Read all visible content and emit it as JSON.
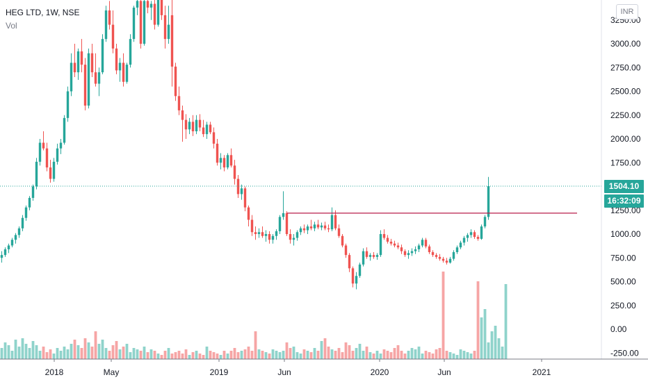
{
  "legend": {
    "symbol": "HEG LTD, 1W, NSE",
    "volume_label": "Vol"
  },
  "currency": "INR",
  "price_badge": "1504.10",
  "timer_badge": "16:32:09",
  "colors": {
    "up": "#26a69a",
    "down": "#ef5350",
    "vol_up": "#8fd3cb",
    "vol_down": "#f6a5a5",
    "price_line": "#26a69a",
    "resistance": "#b71c4a"
  },
  "chart_data": {
    "type": "candlestick",
    "title": "",
    "y_ticks": [
      "3250.00",
      "3000.00",
      "2750.00",
      "2500.00",
      "2250.00",
      "2000.00",
      "1750.00",
      "1250.00",
      "1000.00",
      "750.00",
      "500.00",
      "250.00",
      "0.00",
      "-250.00"
    ],
    "x_ticks": [
      "2018",
      "May",
      "2019",
      "Jun",
      "2020",
      "Jun",
      "2021"
    ],
    "ylim": [
      -300,
      3300
    ],
    "last_price": 1504.1,
    "resistance_level": 1220,
    "price_candles": [
      {
        "o": 750,
        "h": 820,
        "l": 700,
        "c": 780
      },
      {
        "o": 780,
        "h": 860,
        "l": 760,
        "c": 840
      },
      {
        "o": 840,
        "h": 900,
        "l": 800,
        "c": 880
      },
      {
        "o": 880,
        "h": 960,
        "l": 860,
        "c": 940
      },
      {
        "o": 940,
        "h": 1010,
        "l": 900,
        "c": 990
      },
      {
        "o": 990,
        "h": 1080,
        "l": 960,
        "c": 1060
      },
      {
        "o": 1060,
        "h": 1200,
        "l": 1030,
        "c": 1170
      },
      {
        "o": 1170,
        "h": 1300,
        "l": 1140,
        "c": 1280
      },
      {
        "o": 1280,
        "h": 1400,
        "l": 1250,
        "c": 1380
      },
      {
        "o": 1380,
        "h": 1520,
        "l": 1350,
        "c": 1500
      },
      {
        "o": 1500,
        "h": 1800,
        "l": 1470,
        "c": 1760
      },
      {
        "o": 1760,
        "h": 2000,
        "l": 1720,
        "c": 1960
      },
      {
        "o": 1960,
        "h": 2080,
        "l": 1880,
        "c": 1900
      },
      {
        "o": 1900,
        "h": 1960,
        "l": 1660,
        "c": 1700
      },
      {
        "o": 1700,
        "h": 1780,
        "l": 1540,
        "c": 1580
      },
      {
        "o": 1580,
        "h": 1800,
        "l": 1550,
        "c": 1760
      },
      {
        "o": 1760,
        "h": 1950,
        "l": 1730,
        "c": 1900
      },
      {
        "o": 1900,
        "h": 2000,
        "l": 1840,
        "c": 1960
      },
      {
        "o": 1960,
        "h": 2250,
        "l": 1940,
        "c": 2220
      },
      {
        "o": 2220,
        "h": 2550,
        "l": 2180,
        "c": 2500
      },
      {
        "o": 2500,
        "h": 2900,
        "l": 2450,
        "c": 2800
      },
      {
        "o": 2800,
        "h": 3000,
        "l": 2650,
        "c": 2700
      },
      {
        "o": 2700,
        "h": 2950,
        "l": 2620,
        "c": 2920
      },
      {
        "o": 2920,
        "h": 3050,
        "l": 2700,
        "c": 2780
      },
      {
        "o": 2780,
        "h": 2850,
        "l": 2300,
        "c": 2350
      },
      {
        "o": 2350,
        "h": 2950,
        "l": 2320,
        "c": 2900
      },
      {
        "o": 2900,
        "h": 3000,
        "l": 2650,
        "c": 2700
      },
      {
        "o": 2700,
        "h": 2900,
        "l": 2550,
        "c": 2580
      },
      {
        "o": 2580,
        "h": 2750,
        "l": 2450,
        "c": 2700
      },
      {
        "o": 2700,
        "h": 3100,
        "l": 2680,
        "c": 3050
      },
      {
        "o": 3050,
        "h": 3400,
        "l": 3020,
        "c": 3350
      },
      {
        "o": 3350,
        "h": 3450,
        "l": 3150,
        "c": 3200
      },
      {
        "o": 3200,
        "h": 3350,
        "l": 2900,
        "c": 2950
      },
      {
        "o": 2950,
        "h": 3000,
        "l": 2680,
        "c": 2720
      },
      {
        "o": 2720,
        "h": 2850,
        "l": 2600,
        "c": 2800
      },
      {
        "o": 2800,
        "h": 2900,
        "l": 2550,
        "c": 2600
      },
      {
        "o": 2600,
        "h": 2800,
        "l": 2580,
        "c": 2780
      },
      {
        "o": 2780,
        "h": 3100,
        "l": 2750,
        "c": 3050
      },
      {
        "o": 3050,
        "h": 3400,
        "l": 3020,
        "c": 3380
      },
      {
        "o": 3380,
        "h": 3500,
        "l": 3300,
        "c": 3450
      },
      {
        "o": 3450,
        "h": 3500,
        "l": 2950,
        "c": 3000
      },
      {
        "o": 3000,
        "h": 3500,
        "l": 2980,
        "c": 3450
      },
      {
        "o": 3450,
        "h": 3480,
        "l": 3320,
        "c": 3380
      },
      {
        "o": 3380,
        "h": 3450,
        "l": 3250,
        "c": 3420
      },
      {
        "o": 3420,
        "h": 3480,
        "l": 3150,
        "c": 3200
      },
      {
        "o": 3200,
        "h": 3500,
        "l": 3180,
        "c": 3480
      },
      {
        "o": 3600,
        "h": 3700,
        "l": 3250,
        "c": 3300
      },
      {
        "o": 3300,
        "h": 3400,
        "l": 2950,
        "c": 3050
      },
      {
        "o": 3050,
        "h": 3400,
        "l": 3000,
        "c": 3200
      },
      {
        "o": 3300,
        "h": 3500,
        "l": 2550,
        "c": 2760
      },
      {
        "o": 2760,
        "h": 2800,
        "l": 2400,
        "c": 2450
      },
      {
        "o": 2450,
        "h": 2550,
        "l": 2250,
        "c": 2300
      },
      {
        "o": 2300,
        "h": 2350,
        "l": 1970,
        "c": 2200
      },
      {
        "o": 2200,
        "h": 2260,
        "l": 2000,
        "c": 2100
      },
      {
        "o": 2100,
        "h": 2220,
        "l": 2050,
        "c": 2180
      },
      {
        "o": 2180,
        "h": 2250,
        "l": 2030,
        "c": 2080
      },
      {
        "o": 2080,
        "h": 2250,
        "l": 2050,
        "c": 2200
      },
      {
        "o": 2200,
        "h": 2260,
        "l": 2080,
        "c": 2120
      },
      {
        "o": 2120,
        "h": 2200,
        "l": 2020,
        "c": 2050
      },
      {
        "o": 2050,
        "h": 2180,
        "l": 2000,
        "c": 2150
      },
      {
        "o": 2150,
        "h": 2180,
        "l": 2050,
        "c": 2070
      },
      {
        "o": 2070,
        "h": 2120,
        "l": 1900,
        "c": 1950
      },
      {
        "o": 1950,
        "h": 2000,
        "l": 1720,
        "c": 1750
      },
      {
        "o": 1750,
        "h": 1850,
        "l": 1680,
        "c": 1800
      },
      {
        "o": 1800,
        "h": 1830,
        "l": 1660,
        "c": 1700
      },
      {
        "o": 1700,
        "h": 1850,
        "l": 1680,
        "c": 1830
      },
      {
        "o": 1830,
        "h": 1900,
        "l": 1700,
        "c": 1720
      },
      {
        "o": 1720,
        "h": 1780,
        "l": 1520,
        "c": 1580
      },
      {
        "o": 1580,
        "h": 1620,
        "l": 1380,
        "c": 1420
      },
      {
        "o": 1420,
        "h": 1520,
        "l": 1360,
        "c": 1480
      },
      {
        "o": 1480,
        "h": 1500,
        "l": 1240,
        "c": 1280
      },
      {
        "o": 1280,
        "h": 1300,
        "l": 1080,
        "c": 1150
      },
      {
        "o": 1150,
        "h": 1200,
        "l": 980,
        "c": 1020
      },
      {
        "o": 1020,
        "h": 1080,
        "l": 940,
        "c": 1000
      },
      {
        "o": 1000,
        "h": 1060,
        "l": 960,
        "c": 1020
      },
      {
        "o": 1020,
        "h": 1080,
        "l": 960,
        "c": 980
      },
      {
        "o": 980,
        "h": 1040,
        "l": 920,
        "c": 1000
      },
      {
        "o": 1000,
        "h": 1030,
        "l": 900,
        "c": 940
      },
      {
        "o": 940,
        "h": 1000,
        "l": 900,
        "c": 980
      },
      {
        "o": 980,
        "h": 1050,
        "l": 940,
        "c": 1030
      },
      {
        "o": 1030,
        "h": 1200,
        "l": 1000,
        "c": 1180
      },
      {
        "o": 1180,
        "h": 1450,
        "l": 1150,
        "c": 1220
      },
      {
        "o": 1220,
        "h": 1240,
        "l": 980,
        "c": 1000
      },
      {
        "o": 1000,
        "h": 1050,
        "l": 900,
        "c": 940
      },
      {
        "o": 940,
        "h": 1000,
        "l": 880,
        "c": 960
      },
      {
        "o": 960,
        "h": 1040,
        "l": 930,
        "c": 1020
      },
      {
        "o": 1020,
        "h": 1080,
        "l": 990,
        "c": 1060
      },
      {
        "o": 1060,
        "h": 1100,
        "l": 1010,
        "c": 1040
      },
      {
        "o": 1040,
        "h": 1100,
        "l": 1000,
        "c": 1080
      },
      {
        "o": 1080,
        "h": 1150,
        "l": 1040,
        "c": 1060
      },
      {
        "o": 1060,
        "h": 1130,
        "l": 1030,
        "c": 1100
      },
      {
        "o": 1100,
        "h": 1150,
        "l": 1050,
        "c": 1070
      },
      {
        "o": 1070,
        "h": 1120,
        "l": 1040,
        "c": 1090
      },
      {
        "o": 1090,
        "h": 1130,
        "l": 1040,
        "c": 1060
      },
      {
        "o": 1060,
        "h": 1100,
        "l": 1020,
        "c": 1050
      },
      {
        "o": 1050,
        "h": 1280,
        "l": 1030,
        "c": 1200
      },
      {
        "o": 1200,
        "h": 1250,
        "l": 1040,
        "c": 1060
      },
      {
        "o": 1060,
        "h": 1100,
        "l": 960,
        "c": 980
      },
      {
        "o": 980,
        "h": 1000,
        "l": 860,
        "c": 880
      },
      {
        "o": 880,
        "h": 900,
        "l": 750,
        "c": 780
      },
      {
        "o": 780,
        "h": 800,
        "l": 600,
        "c": 640
      },
      {
        "o": 640,
        "h": 660,
        "l": 440,
        "c": 480
      },
      {
        "o": 480,
        "h": 600,
        "l": 420,
        "c": 560
      },
      {
        "o": 560,
        "h": 700,
        "l": 540,
        "c": 680
      },
      {
        "o": 680,
        "h": 850,
        "l": 660,
        "c": 820
      },
      {
        "o": 820,
        "h": 860,
        "l": 740,
        "c": 760
      },
      {
        "o": 760,
        "h": 800,
        "l": 720,
        "c": 780
      },
      {
        "o": 780,
        "h": 810,
        "l": 740,
        "c": 760
      },
      {
        "o": 760,
        "h": 800,
        "l": 730,
        "c": 780
      },
      {
        "o": 780,
        "h": 1040,
        "l": 760,
        "c": 1000
      },
      {
        "o": 1000,
        "h": 1050,
        "l": 940,
        "c": 960
      },
      {
        "o": 960,
        "h": 990,
        "l": 900,
        "c": 920
      },
      {
        "o": 920,
        "h": 950,
        "l": 880,
        "c": 900
      },
      {
        "o": 900,
        "h": 930,
        "l": 860,
        "c": 880
      },
      {
        "o": 880,
        "h": 910,
        "l": 840,
        "c": 860
      },
      {
        "o": 860,
        "h": 890,
        "l": 790,
        "c": 820
      },
      {
        "o": 820,
        "h": 840,
        "l": 760,
        "c": 780
      },
      {
        "o": 780,
        "h": 830,
        "l": 740,
        "c": 800
      },
      {
        "o": 800,
        "h": 850,
        "l": 770,
        "c": 820
      },
      {
        "o": 820,
        "h": 870,
        "l": 790,
        "c": 840
      },
      {
        "o": 840,
        "h": 900,
        "l": 810,
        "c": 880
      },
      {
        "o": 880,
        "h": 960,
        "l": 860,
        "c": 940
      },
      {
        "o": 940,
        "h": 960,
        "l": 850,
        "c": 870
      },
      {
        "o": 870,
        "h": 890,
        "l": 790,
        "c": 810
      },
      {
        "o": 810,
        "h": 830,
        "l": 760,
        "c": 780
      },
      {
        "o": 780,
        "h": 800,
        "l": 740,
        "c": 760
      },
      {
        "o": 760,
        "h": 790,
        "l": 720,
        "c": 740
      },
      {
        "o": 740,
        "h": 760,
        "l": 700,
        "c": 720
      },
      {
        "o": 720,
        "h": 750,
        "l": 680,
        "c": 700
      },
      {
        "o": 700,
        "h": 760,
        "l": 690,
        "c": 740
      },
      {
        "o": 740,
        "h": 830,
        "l": 720,
        "c": 810
      },
      {
        "o": 810,
        "h": 880,
        "l": 790,
        "c": 860
      },
      {
        "o": 860,
        "h": 930,
        "l": 840,
        "c": 910
      },
      {
        "o": 910,
        "h": 980,
        "l": 880,
        "c": 960
      },
      {
        "o": 960,
        "h": 1010,
        "l": 920,
        "c": 990
      },
      {
        "o": 990,
        "h": 1050,
        "l": 960,
        "c": 1020
      },
      {
        "o": 1020,
        "h": 1040,
        "l": 950,
        "c": 970
      },
      {
        "o": 970,
        "h": 990,
        "l": 930,
        "c": 950
      },
      {
        "o": 950,
        "h": 1100,
        "l": 940,
        "c": 1080
      },
      {
        "o": 1080,
        "h": 1200,
        "l": 1060,
        "c": 1180
      },
      {
        "o": 1180,
        "h": 1600,
        "l": 1150,
        "c": 1504
      }
    ],
    "volume_max_bar": 575,
    "volumes": [
      80,
      120,
      100,
      60,
      140,
      90,
      150,
      110,
      80,
      130,
      100,
      60,
      90,
      50,
      70,
      40,
      80,
      60,
      90,
      70,
      110,
      140,
      100,
      80,
      150,
      120,
      90,
      200,
      110,
      140,
      80,
      60,
      100,
      130,
      70,
      90,
      110,
      50,
      80,
      70,
      60,
      90,
      50,
      70,
      60,
      40,
      30,
      60,
      80,
      40,
      50,
      60,
      40,
      70,
      30,
      50,
      60,
      40,
      30,
      90,
      60,
      50,
      40,
      30,
      60,
      40,
      60,
      80,
      50,
      60,
      70,
      90,
      60,
      200,
      70,
      60,
      50,
      40,
      70,
      60,
      50,
      60,
      120,
      80,
      90,
      50,
      40,
      70,
      60,
      50,
      80,
      60,
      130,
      150,
      90,
      70,
      60,
      80,
      50,
      120,
      100,
      60,
      80,
      110,
      60,
      90,
      50,
      40,
      60,
      40,
      70,
      60,
      50,
      80,
      100,
      60,
      40,
      60,
      80,
      70,
      90,
      40,
      60,
      50,
      40,
      70,
      80,
      630,
      60,
      50,
      40,
      30,
      70,
      60,
      50,
      40,
      60,
      560,
      300,
      360,
      120,
      200,
      240,
      150,
      90,
      540
    ]
  }
}
